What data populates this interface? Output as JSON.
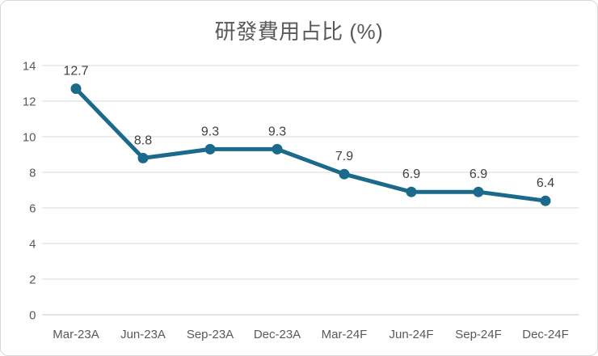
{
  "chart_data": {
    "type": "line",
    "title": "研發費用占比 (%)",
    "categories": [
      "Mar-23A",
      "Jun-23A",
      "Sep-23A",
      "Dec-23A",
      "Mar-24F",
      "Jun-24F",
      "Sep-24F",
      "Dec-24F"
    ],
    "values": [
      12.7,
      8.8,
      9.3,
      9.3,
      7.9,
      6.9,
      6.9,
      6.4
    ],
    "data_labels": [
      "12.7",
      "8.8",
      "9.3",
      "9.3",
      "7.9",
      "6.9",
      "6.9",
      "6.4"
    ],
    "xlabel": "",
    "ylabel": "",
    "ylim": [
      0,
      14
    ],
    "yticks": [
      0,
      2,
      4,
      6,
      8,
      10,
      12,
      14
    ],
    "ytick_labels": [
      "0",
      "2",
      "4",
      "6",
      "8",
      "10",
      "12",
      "14"
    ],
    "grid": true,
    "legend_position": "none",
    "data_labels_position": "above",
    "colors": {
      "line": "#1b6a8c",
      "marker": "#1b6a8c",
      "gridline": "#d9d9d9",
      "axis_line": "#c6c6c6",
      "tick_label": "#595959",
      "data_label": "#404040",
      "title": "#595959",
      "chart_border": "#d9d9d9",
      "background": "#ffffff"
    }
  }
}
